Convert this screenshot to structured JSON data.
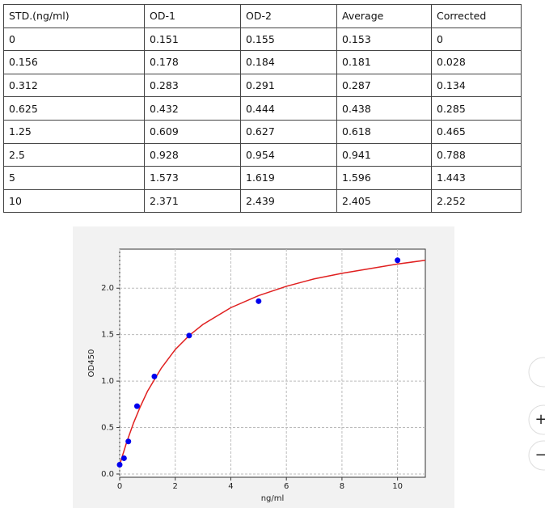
{
  "table": {
    "header": [
      "STD.(ng/ml)",
      "OD-1",
      "OD-2",
      "Average",
      "Corrected"
    ],
    "rows": [
      [
        "0",
        "0.151",
        "0.155",
        "0.153",
        "0"
      ],
      [
        "0.156",
        "0.178",
        "0.184",
        "0.181",
        "0.028"
      ],
      [
        "0.312",
        "0.283",
        "0.291",
        "0.287",
        "0.134"
      ],
      [
        "0.625",
        "0.432",
        "0.444",
        "0.438",
        "0.285"
      ],
      [
        "1.25",
        "0.609",
        "0.627",
        "0.618",
        "0.465"
      ],
      [
        "2.5",
        "0.928",
        "0.954",
        "0.941",
        "0.788"
      ],
      [
        "5",
        "1.573",
        "1.619",
        "1.596",
        "1.443"
      ],
      [
        "10",
        "2.371",
        "2.439",
        "2.405",
        "2.252"
      ]
    ]
  },
  "chart_data": {
    "type": "scatter",
    "x_label": "ng/ml",
    "y_label": "OD450",
    "points": {
      "color": "#0000ee",
      "x": [
        0,
        0.156,
        0.312,
        0.625,
        1.25,
        2.5,
        5,
        10
      ],
      "y": [
        0.1,
        0.17,
        0.35,
        0.73,
        1.05,
        1.49,
        1.86,
        2.3
      ]
    },
    "curve": {
      "color": "#e02020",
      "x": [
        0,
        0.25,
        0.5,
        0.75,
        1,
        1.5,
        2,
        2.5,
        3,
        4,
        5,
        6,
        7,
        8,
        9,
        10,
        11
      ],
      "y": [
        0.1,
        0.34,
        0.55,
        0.73,
        0.89,
        1.14,
        1.34,
        1.49,
        1.61,
        1.79,
        1.92,
        2.02,
        2.1,
        2.16,
        2.21,
        2.26,
        2.3
      ]
    },
    "xlim": [
      0,
      11
    ],
    "ylim": [
      -0.035,
      2.42
    ],
    "xticks": [
      0,
      2,
      4,
      6,
      8,
      10
    ],
    "yticks": [
      {
        "value": 0,
        "label": "0.0"
      },
      {
        "value": 0.5,
        "label": "0.5"
      },
      {
        "value": 1,
        "label": "1.0"
      },
      {
        "value": 1.5,
        "label": "1.5"
      },
      {
        "value": 2,
        "label": "2.0"
      }
    ],
    "grid": true
  },
  "controls": {
    "zoom_in": "+",
    "zoom_out": "−"
  }
}
